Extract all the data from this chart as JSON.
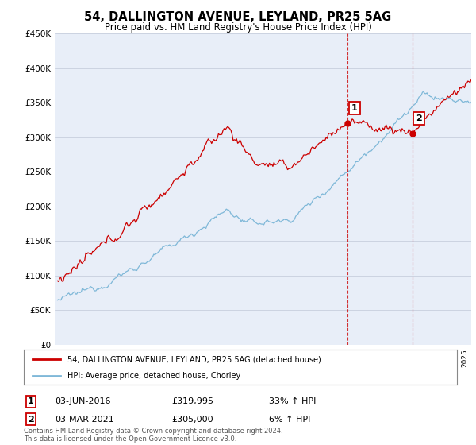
{
  "title": "54, DALLINGTON AVENUE, LEYLAND, PR25 5AG",
  "subtitle": "Price paid vs. HM Land Registry's House Price Index (HPI)",
  "legend_line1": "54, DALLINGTON AVENUE, LEYLAND, PR25 5AG (detached house)",
  "legend_line2": "HPI: Average price, detached house, Chorley",
  "purchase1_date": "03-JUN-2016",
  "purchase1_price": 319995,
  "purchase1_pct": "33% ↑ HPI",
  "purchase2_date": "03-MAR-2021",
  "purchase2_price": 305000,
  "purchase2_pct": "6% ↑ HPI",
  "footer": "Contains HM Land Registry data © Crown copyright and database right 2024.\nThis data is licensed under the Open Government Licence v3.0.",
  "hpi_color": "#7fb8d8",
  "price_color": "#cc0000",
  "vline_color": "#cc0000",
  "ylim": [
    0,
    450000
  ],
  "yticks": [
    0,
    50000,
    100000,
    150000,
    200000,
    250000,
    300000,
    350000,
    400000,
    450000
  ],
  "background_color": "#ffffff",
  "plot_bg_color": "#e8eef8"
}
